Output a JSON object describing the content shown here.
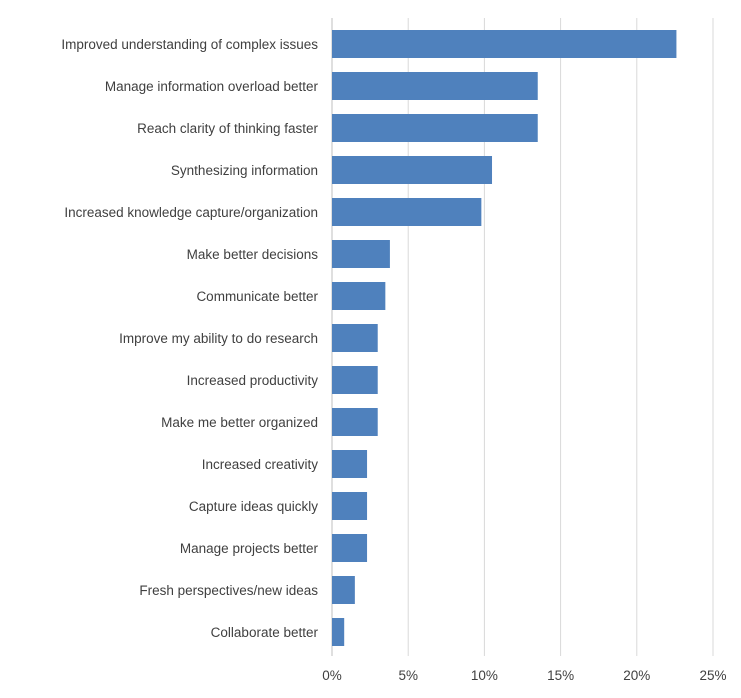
{
  "chart_data": {
    "type": "bar",
    "orientation": "horizontal",
    "title": "",
    "xlabel": "",
    "ylabel": "",
    "categories": [
      "Improved understanding of complex issues",
      "Manage information overload better",
      "Reach clarity of thinking faster",
      "Synthesizing information",
      "Increased knowledge capture/organization",
      "Make better decisions",
      "Communicate better",
      "Improve my ability to do research",
      "Increased productivity",
      "Make me better organized",
      "Increased creativity",
      "Capture ideas quickly",
      "Manage projects better",
      "Fresh perspectives/new ideas",
      "Collaborate better"
    ],
    "values": [
      22.6,
      13.5,
      13.5,
      10.5,
      9.8,
      3.8,
      3.5,
      3.0,
      3.0,
      3.0,
      2.3,
      2.3,
      2.3,
      1.5,
      0.8
    ],
    "value_unit": "percent",
    "xlim": [
      0,
      25
    ],
    "xticks": [
      "0%",
      "5%",
      "10%",
      "15%",
      "20%",
      "25%"
    ],
    "grid": "vertical gridlines at each tick",
    "legend": "none",
    "bar_color": "#4f81bd"
  }
}
